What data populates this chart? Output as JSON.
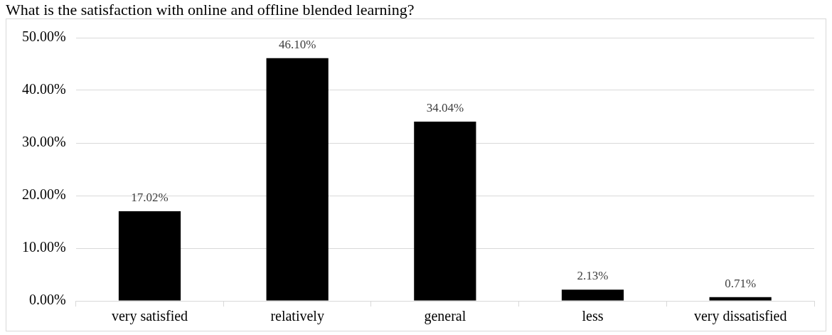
{
  "chart_data": {
    "type": "bar",
    "title": "What is the satisfaction with online and offline blended learning?",
    "categories": [
      "very satisfied",
      "relatively",
      "general",
      "less",
      "very dissatisfied"
    ],
    "values": [
      17.02,
      46.1,
      34.04,
      2.13,
      0.71
    ],
    "value_labels": [
      "17.02%",
      "46.10%",
      "34.04%",
      "2.13%",
      "0.71%"
    ],
    "color": "#000000",
    "ylim": [
      0,
      50
    ],
    "yticks": [
      {
        "value": 0,
        "label": "0.00%"
      },
      {
        "value": 10,
        "label": "10.00%"
      },
      {
        "value": 20,
        "label": "20.00%"
      },
      {
        "value": 30,
        "label": "30.00%"
      },
      {
        "value": 40,
        "label": "40.00%"
      },
      {
        "value": 50,
        "label": "50.00%"
      }
    ],
    "grid": "y"
  }
}
